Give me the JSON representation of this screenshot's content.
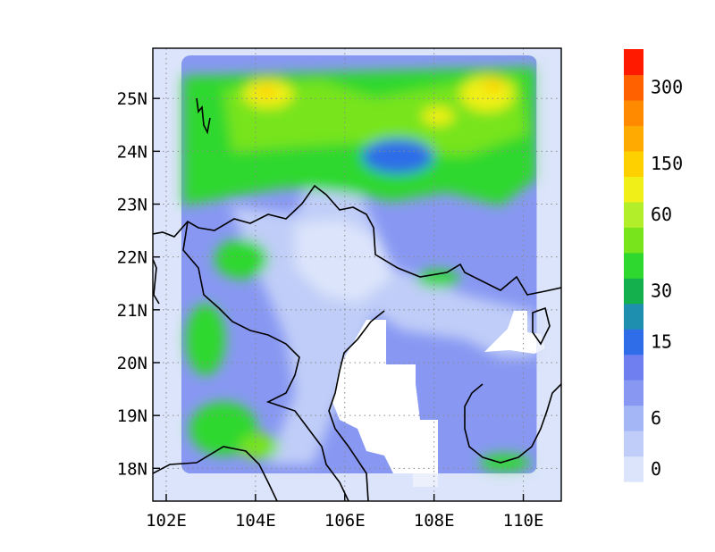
{
  "map": {
    "lon_range": [
      101.7,
      110.85
    ],
    "lat_range": [
      17.38,
      25.95
    ],
    "x_ticks": [
      {
        "value": 102,
        "label": "102E"
      },
      {
        "value": 104,
        "label": "104E"
      },
      {
        "value": 106,
        "label": "106E"
      },
      {
        "value": 108,
        "label": "108E"
      },
      {
        "value": 110,
        "label": "110E"
      }
    ],
    "y_ticks": [
      {
        "value": 18,
        "label": "18N"
      },
      {
        "value": 19,
        "label": "19N"
      },
      {
        "value": 20,
        "label": "20N"
      },
      {
        "value": 21,
        "label": "21N"
      },
      {
        "value": 22,
        "label": "22N"
      },
      {
        "value": 23,
        "label": "23N"
      },
      {
        "value": 24,
        "label": "24N"
      },
      {
        "value": 25,
        "label": "25N"
      }
    ],
    "grid": "dotted",
    "field_domain": {
      "lon": [
        101.9,
        110.25
      ],
      "lat": [
        18.0,
        25.85
      ]
    }
  },
  "colorbar": {
    "placement": "right",
    "colors": [
      "#dbe4fa",
      "#c0cdf8",
      "#a4b6f6",
      "#8898f2",
      "#6f7ff0",
      "#2f6de8",
      "#1f8fb0",
      "#14b04e",
      "#2ed82e",
      "#77e41c",
      "#b2ee2a",
      "#f0f018",
      "#ffd000",
      "#ffaa00",
      "#ff8a00",
      "#ff6000",
      "#ff1a00"
    ],
    "labels": [
      {
        "text": "0",
        "index": 0
      },
      {
        "text": "6",
        "index": 2
      },
      {
        "text": "15",
        "index": 5
      },
      {
        "text": "30",
        "index": 7
      },
      {
        "text": "60",
        "index": 10
      },
      {
        "text": "150",
        "index": 12
      },
      {
        "text": "300",
        "index": 15
      }
    ]
  }
}
